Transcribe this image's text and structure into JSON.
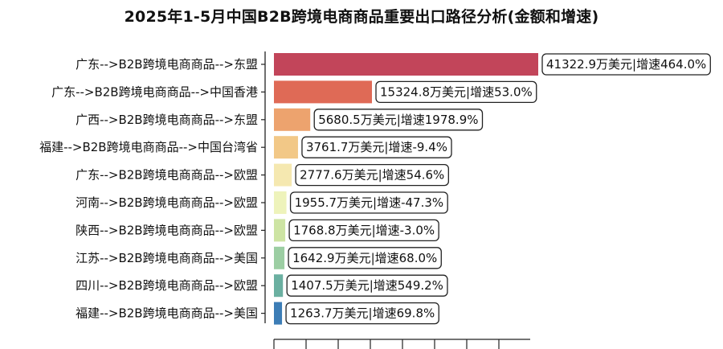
{
  "chart_data": {
    "type": "bar",
    "orientation": "horizontal",
    "title": "2025年1-5月中国B2B跨境电商商品重要出口路径分析(金额和增速)",
    "categories": [
      "广东-->B2B跨境电商商品-->东盟",
      "广东-->B2B跨境电商商品-->中国香港",
      "广西-->B2B跨境电商商品-->东盟",
      "福建-->B2B跨境电商商品-->中国台湾省",
      "广东-->B2B跨境电商商品-->欧盟",
      "河南-->B2B跨境电商商品-->欧盟",
      "陕西-->B2B跨境电商商品-->欧盟",
      "江苏-->B2B跨境电商商品-->美国",
      "四川-->B2B跨境电商商品-->欧盟",
      "福建-->B2B跨境电商商品-->美国"
    ],
    "values": [
      41322.9,
      15324.8,
      5680.5,
      3761.7,
      2777.6,
      1955.7,
      1768.8,
      1642.9,
      1407.5,
      1263.7
    ],
    "data_labels": [
      "41322.9万美元|增速464.0%",
      "15324.8万美元|增速53.0%",
      "5680.5万美元|增速1978.9%",
      "3761.7万美元|增速-9.4%",
      "2777.6万美元|增速54.6%",
      "1955.7万美元|增速-47.3%",
      "1768.8万美元|增速-3.0%",
      "1642.9万美元|增速68.0%",
      "1407.5万美元|增速549.2%",
      "1263.7万美元|增速69.8%"
    ],
    "colors": [
      "#c2455a",
      "#df6a56",
      "#eda36e",
      "#f2c887",
      "#f5e8b0",
      "#eef3bb",
      "#cde4a3",
      "#9ccea3",
      "#6bb0a1",
      "#3c7db6"
    ],
    "xlim": [
      0,
      41322.9
    ],
    "grid": false,
    "legend": "none"
  }
}
